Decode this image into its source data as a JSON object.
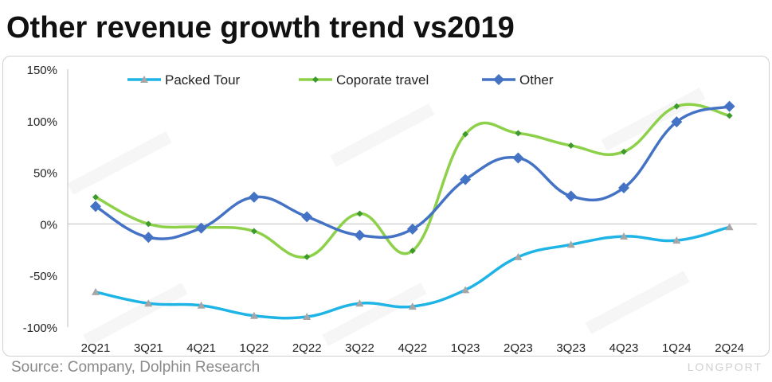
{
  "header": {
    "title": "Other revenue growth trend vs2019"
  },
  "footer": {
    "source": "Source: Company, Dolphin Research",
    "brand": "LONGPORT"
  },
  "colors": {
    "packed_tour": "#1EB4E6",
    "coporate_travel": "#8DD14A",
    "other": "#4472C4",
    "marker_packed": "#A6A6A6"
  },
  "chart_data": {
    "type": "line",
    "title": "Other revenue growth trend vs2019",
    "xlabel": "",
    "ylabel": "",
    "ylim": [
      -100,
      150
    ],
    "yticks": [
      {
        "value": 150,
        "label": "150%"
      },
      {
        "value": 100,
        "label": "100%"
      },
      {
        "value": 50,
        "label": "50%"
      },
      {
        "value": 0,
        "label": "0%"
      },
      {
        "value": -50,
        "label": "-50%"
      },
      {
        "value": -100,
        "label": "-100%"
      }
    ],
    "categories": [
      "2Q21",
      "3Q21",
      "4Q21",
      "1Q22",
      "2Q22",
      "3Q22",
      "4Q22",
      "1Q23",
      "2Q23",
      "3Q23",
      "4Q23",
      "1Q24",
      "2Q24"
    ],
    "legend_position": "top",
    "grid": false,
    "series": [
      {
        "name": "Packed Tour",
        "values": [
          -66,
          -77,
          -79,
          -89,
          -90,
          -77,
          -80,
          -64,
          -32,
          -20,
          -12,
          -16,
          -3
        ]
      },
      {
        "name": "Coporate travel",
        "values": [
          26,
          0,
          -3,
          -7,
          -32,
          10,
          -26,
          87,
          88,
          76,
          70,
          114,
          105
        ]
      },
      {
        "name": "Other",
        "values": [
          17,
          -13,
          -4,
          26,
          7,
          -11,
          -5,
          43,
          64,
          27,
          35,
          99,
          114
        ]
      }
    ]
  }
}
